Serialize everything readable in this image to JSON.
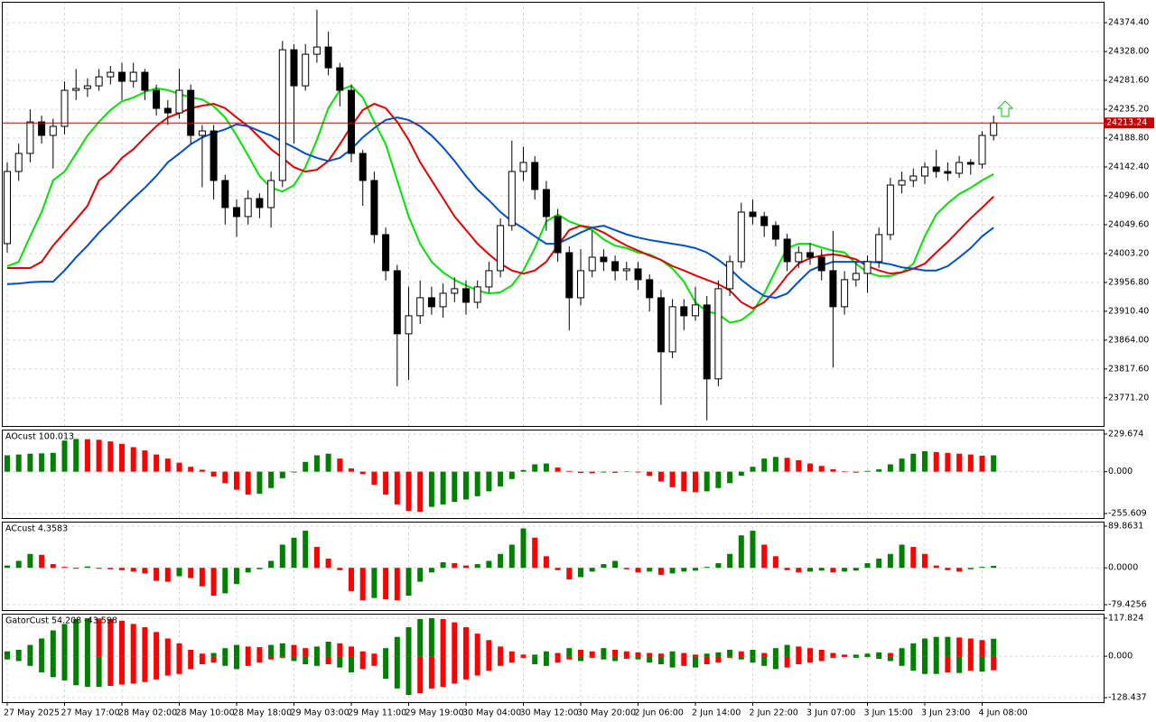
{
  "chart_data": [
    {
      "type": "candlestick",
      "categories": [
        "27 May 2025",
        null,
        null,
        null,
        null,
        "27 May 17:00",
        null,
        null,
        null,
        null,
        "28 May 02:00",
        null,
        null,
        null,
        null,
        "28 May 10:00",
        null,
        null,
        null,
        null,
        "28 May 18:00",
        null,
        null,
        null,
        null,
        "29 May 03:00",
        null,
        null,
        null,
        null,
        "29 May 11:00",
        null,
        null,
        null,
        null,
        "29 May 19:00",
        null,
        null,
        null,
        null,
        "30 May 04:00",
        null,
        null,
        null,
        null,
        "30 May 12:00",
        null,
        null,
        null,
        null,
        "30 May 20:00",
        null,
        null,
        null,
        null,
        "2 Jun 06:00",
        null,
        null,
        null,
        null,
        "2 Jun 14:00",
        null,
        null,
        null,
        null,
        "2 Jun 22:00",
        null,
        null,
        null,
        null,
        "3 Jun 07:00",
        null,
        null,
        null,
        null,
        "3 Jun 15:00",
        null,
        null,
        null,
        null,
        "3 Jun 23:00",
        null,
        null,
        null,
        null,
        "4 Jun 08:00",
        null
      ],
      "open": [
        24019.2,
        24135.2,
        24164.2,
        24214.9,
        24193.2,
        24207.7,
        24265.7,
        24268.6,
        24272.9,
        24287.4,
        24294.7,
        24280.2,
        24294.7,
        24265.7,
        24236.7,
        24229.4,
        24265.7,
        24193.2,
        24200.4,
        24120.7,
        24077.2,
        24062.7,
        24091.7,
        24077.2,
        24120.7,
        24330.9,
        24272.9,
        24323.7,
        24335.3,
        24301.9,
        24265.7,
        24164.2,
        24120.7,
        24033.7,
        23975.7,
        23874.2,
        23903.2,
        23932.2,
        23917.7,
        23939.4,
        23946.7,
        23924.9,
        23949.6,
        23975.7,
        24048.2,
        24135.2,
        24149.7,
        24106.2,
        24062.7,
        24004.7,
        23932.2,
        23975.7,
        23997.4,
        23990.2,
        23975.7,
        23978.6,
        23961.2,
        23932.2,
        23845.2,
        23917.7,
        23903.2,
        23920.6,
        23801.7,
        23946.7,
        23990.2,
        24069.9,
        24062.7,
        24048.2,
        24026.4,
        23990.2,
        24004.7,
        23997.4,
        23975.7,
        23917.7,
        23961.2,
        23971.3,
        23990.2,
        24033.7,
        24113.4,
        24120.7,
        24127.9,
        24142.4,
        24135.2,
        24132.3,
        24149.7,
        24146.9,
        24193.2
      ],
      "high": [
        24150,
        24180,
        24235,
        24225,
        24220,
        24280,
        24300,
        24285,
        24300,
        24305,
        24310,
        24310,
        24300,
        24275,
        24250,
        24300,
        24275,
        24210,
        24210,
        24130,
        24090,
        24105,
        24100,
        24135,
        24345,
        24340,
        24340,
        24395,
        24360,
        24310,
        24275,
        24170,
        24135,
        24045,
        23985,
        23950,
        23960,
        23950,
        23955,
        23965,
        23960,
        23960,
        23990,
        24060,
        24185,
        24175,
        24160,
        24120,
        24075,
        24015,
        24010,
        24040,
        24010,
        24000,
        23990,
        23990,
        23970,
        23945,
        23930,
        23930,
        23950,
        23935,
        23960,
        24000,
        24085,
        24090,
        24070,
        24055,
        24035,
        24015,
        24020,
        24010,
        24040,
        23975,
        23990,
        24000,
        24045,
        24125,
        24135,
        24140,
        24150,
        24170,
        24150,
        24160,
        24155,
        24200,
        24225
      ],
      "low": [
        24005,
        24120,
        24150,
        24180,
        24140,
        24195,
        24250,
        24255,
        24265,
        24275,
        24250,
        24270,
        24250,
        24225,
        24210,
        24220,
        24180,
        24110,
        24090,
        24050,
        24030,
        24050,
        24060,
        24045,
        24110,
        24180,
        24265,
        24310,
        24290,
        24240,
        24150,
        24080,
        24020,
        23960,
        23790,
        23800,
        23890,
        23905,
        23900,
        23925,
        23905,
        23915,
        23940,
        23965,
        24040,
        24120,
        24090,
        24040,
        23990,
        23880,
        23920,
        23965,
        23975,
        23960,
        23960,
        23945,
        23910,
        23760,
        23835,
        23880,
        23895,
        23735,
        23790,
        23935,
        23980,
        24050,
        24030,
        24015,
        23975,
        23980,
        23985,
        23960,
        23820,
        23905,
        23950,
        23940,
        23980,
        24025,
        24100,
        24110,
        24115,
        24125,
        24120,
        24125,
        24130,
        24140,
        24185
      ],
      "close": [
        24135.2,
        24164.2,
        24214.9,
        24193.2,
        24207.7,
        24265.7,
        24268.6,
        24272.9,
        24287.4,
        24294.7,
        24280.2,
        24294.7,
        24265.7,
        24236.7,
        24229.4,
        24265.7,
        24193.2,
        24200.4,
        24120.7,
        24077.2,
        24062.7,
        24091.7,
        24077.2,
        24120.7,
        24330.9,
        24272.9,
        24323.7,
        24335.3,
        24301.9,
        24265.7,
        24164.2,
        24120.7,
        24033.7,
        23975.7,
        23874.2,
        23903.2,
        23932.2,
        23917.7,
        23939.4,
        23946.7,
        23924.9,
        23949.6,
        23975.7,
        24048.2,
        24135.2,
        24149.7,
        24106.2,
        24062.7,
        24004.7,
        23932.2,
        23975.7,
        23997.4,
        23990.2,
        23975.7,
        23978.6,
        23961.2,
        23932.2,
        23845.2,
        23917.7,
        23903.2,
        23920.6,
        23801.7,
        23946.7,
        23990.2,
        24069.9,
        24062.7,
        24048.2,
        24026.4,
        23990.2,
        24004.7,
        23997.4,
        23975.7,
        23917.7,
        23961.2,
        23971.3,
        23990.2,
        24033.7,
        24113.4,
        24120.7,
        24127.9,
        24142.4,
        24135.2,
        24132.3,
        24149.7,
        24146.9,
        24193.2,
        24213.24
      ],
      "up_color": "#ffffff",
      "down_color": "#000000",
      "lines": [
        {
          "color": "#00e600",
          "values": [
            23983,
            23990,
            24031,
            24070,
            24121,
            24135,
            24164,
            24193,
            24215,
            24234,
            24248,
            24254,
            24263,
            24269,
            24266,
            24260,
            24254,
            24251,
            24240,
            24222,
            24193,
            24161,
            24128,
            24109,
            24103,
            24113,
            24142,
            24186,
            24237,
            24266,
            24273,
            24254,
            24215,
            24179,
            24121,
            24063,
            24019,
            23990,
            23973,
            23961,
            23952,
            23944,
            23939,
            23941,
            23952,
            23976,
            24012,
            24055,
            24066,
            24055,
            24048,
            24041,
            24026,
            24016,
            24012,
            24005,
            24002,
            23993,
            23979,
            23958,
            23925,
            23910,
            23906,
            23892,
            23896,
            23910,
            23939,
            23976,
            24012,
            24019,
            24019,
            24013,
            24008,
            24005,
            23987,
            23973,
            23967,
            23967,
            23973,
            23987,
            24031,
            24066,
            24084,
            24099,
            24109,
            24121,
            24131
          ]
        },
        {
          "color": "#e60000",
          "values": [
            23980,
            23980,
            23980,
            23990,
            24016,
            24037,
            24058,
            24080,
            24121,
            24135,
            24157,
            24171,
            24190,
            24208,
            24222,
            24229,
            24237,
            24241,
            24244,
            24237,
            24222,
            24208,
            24190,
            24171,
            24157,
            24142,
            24135,
            24138,
            24152,
            24179,
            24208,
            24234,
            24244,
            24237,
            24215,
            24186,
            24150,
            24121,
            24092,
            24063,
            24041,
            24019,
            24002,
            23987,
            23976,
            23971,
            23976,
            23990,
            24016,
            24041,
            24048,
            24045,
            24037,
            24026,
            24016,
            24008,
            24000,
            23993,
            23983,
            23976,
            23968,
            23961,
            23954,
            23944,
            23925,
            23915,
            23925,
            23944,
            23968,
            23987,
            23996,
            24000,
            24002,
            23999,
            23994,
            23983,
            23976,
            23971,
            23973,
            23979,
            23987,
            24005,
            24022,
            24041,
            24060,
            24077,
            24095
          ]
        },
        {
          "color": "#0050c8",
          "values": [
            23954,
            23955,
            23957,
            23958,
            23958,
            23976,
            23997,
            24016,
            24037,
            24055,
            24074,
            24092,
            24109,
            24128,
            24150,
            24164,
            24179,
            24190,
            24197,
            24203,
            24211,
            24208,
            24200,
            24193,
            24183,
            24174,
            24164,
            24157,
            24152,
            24157,
            24171,
            24190,
            24205,
            24218,
            24222,
            24218,
            24208,
            24193,
            24174,
            24152,
            24128,
            24106,
            24089,
            24070,
            24055,
            24044,
            24031,
            24019,
            24019,
            24028,
            24037,
            24045,
            24048,
            24041,
            24034,
            24029,
            24025,
            24022,
            24019,
            24016,
            24012,
            24005,
            23993,
            23979,
            23961,
            23947,
            23935,
            23932,
            23939,
            23958,
            23976,
            23984,
            23990,
            23990,
            23990,
            23990,
            23989,
            23986,
            23981,
            23979,
            23976,
            23976,
            23983,
            23997,
            24012,
            24031,
            24045
          ]
        }
      ],
      "current_price": 24213.24,
      "current_price_color": "#c80000",
      "ylim": [
        23726,
        24408
      ],
      "yticks": [
        {
          "value": 24374.4,
          "label": "24374.40"
        },
        {
          "value": 24328,
          "label": "24328.00"
        },
        {
          "value": 24281.6,
          "label": "24281.60"
        },
        {
          "value": 24235.2,
          "label": "24235.20"
        },
        {
          "value": 24188.8,
          "label": "24188.80"
        },
        {
          "value": 24142.4,
          "label": "24142.40"
        },
        {
          "value": 24096,
          "label": "24096.00"
        },
        {
          "value": 24049.6,
          "label": "24049.60"
        },
        {
          "value": 24003.2,
          "label": "24003.20"
        },
        {
          "value": 23956.8,
          "label": "23956.80"
        },
        {
          "value": 23910.4,
          "label": "23910.40"
        },
        {
          "value": 23864,
          "label": "23864.00"
        },
        {
          "value": 23817.6,
          "label": "23817.60"
        },
        {
          "value": 23771.2,
          "label": "23771.20"
        }
      ],
      "grid": true
    },
    {
      "type": "histogram",
      "title": "AOcust 100.013",
      "values": [
        100,
        105,
        110,
        112,
        115,
        190,
        200,
        198,
        195,
        185,
        170,
        150,
        130,
        105,
        80,
        55,
        30,
        12,
        -30,
        -70,
        -110,
        -140,
        -135,
        -100,
        -40,
        -5,
        60,
        100,
        110,
        80,
        20,
        -15,
        -80,
        -140,
        -200,
        -240,
        -245,
        -215,
        -200,
        -185,
        -170,
        -150,
        -120,
        -90,
        -45,
        10,
        45,
        50,
        25,
        5,
        -8,
        -10,
        -5,
        -7,
        2,
        -5,
        -25,
        -60,
        -95,
        -120,
        -125,
        -120,
        -100,
        -70,
        -25,
        30,
        80,
        90,
        85,
        70,
        50,
        35,
        15,
        3,
        -6,
        5,
        15,
        45,
        80,
        110,
        125,
        120,
        115,
        110,
        105,
        98,
        100.013
      ],
      "up_color": "#008000",
      "down_color": "#ff0000",
      "ylim": [
        -283.2,
        257.2
      ],
      "yticks": [
        229.674,
        {
          "value": 0,
          "label": "0.000"
        },
        -255.609
      ],
      "grid": true
    },
    {
      "type": "histogram",
      "title": "ACcust 4.3583",
      "values": [
        5,
        15,
        30,
        28,
        8,
        2,
        -2,
        3,
        -2,
        -3,
        -5,
        -8,
        -12,
        -28,
        -30,
        -18,
        -22,
        -40,
        -60,
        -55,
        -35,
        -10,
        -3,
        15,
        50,
        65,
        80,
        45,
        20,
        -5,
        -50,
        -70,
        -65,
        -68,
        -70,
        -60,
        -30,
        -10,
        12,
        10,
        5,
        8,
        15,
        30,
        50,
        85,
        65,
        25,
        -5,
        -25,
        -20,
        -8,
        8,
        15,
        -3,
        -10,
        -8,
        -15,
        -12,
        -8,
        -6,
        2,
        10,
        30,
        70,
        80,
        50,
        25,
        -5,
        -10,
        -8,
        -6,
        -10,
        -8,
        -6,
        10,
        20,
        30,
        50,
        45,
        30,
        5,
        -5,
        -8,
        -3,
        2,
        4.3583
      ],
      "up_color": "#008000",
      "down_color": "#ff0000",
      "ylim": [
        -91.1,
        99.6
      ],
      "yticks": [
        89.8631,
        {
          "value": 0,
          "label": "0.0000"
        },
        -79.4256
      ],
      "grid": true
    },
    {
      "type": "gator",
      "title": "GatorCust 54.208 -43.598",
      "upper": [
        15,
        20,
        35,
        55,
        80,
        100,
        115,
        118,
        117,
        115,
        110,
        100,
        90,
        75,
        55,
        40,
        20,
        8,
        10,
        25,
        35,
        30,
        28,
        35,
        40,
        35,
        25,
        30,
        45,
        40,
        30,
        15,
        8,
        25,
        60,
        90,
        115,
        118,
        115,
        105,
        90,
        70,
        50,
        30,
        15,
        5,
        5,
        15,
        10,
        25,
        20,
        15,
        25,
        20,
        15,
        12,
        10,
        8,
        15,
        10,
        5,
        8,
        12,
        20,
        15,
        20,
        10,
        25,
        35,
        30,
        25,
        20,
        10,
        5,
        5,
        8,
        12,
        10,
        25,
        40,
        55,
        60,
        60,
        58,
        55,
        50,
        54.208
      ],
      "lower": [
        -10,
        -15,
        -30,
        -50,
        -65,
        -75,
        -90,
        -95,
        -95,
        -92,
        -88,
        -85,
        -80,
        -72,
        -60,
        -55,
        -40,
        -25,
        -20,
        -30,
        -40,
        -30,
        -20,
        -10,
        -5,
        -15,
        -25,
        -30,
        -25,
        -35,
        -50,
        -40,
        -30,
        -70,
        -100,
        -120,
        -115,
        -100,
        -95,
        -85,
        -72,
        -60,
        -45,
        -30,
        -20,
        -5,
        -25,
        -30,
        -20,
        -10,
        -15,
        -5,
        -10,
        -15,
        -8,
        -10,
        -20,
        -25,
        -35,
        -30,
        -35,
        -25,
        -20,
        -5,
        -10,
        -20,
        -30,
        -40,
        -35,
        -25,
        -20,
        -15,
        -5,
        -3,
        -5,
        -3,
        -8,
        -15,
        -30,
        -45,
        -55,
        -55,
        -50,
        -52,
        -45,
        -48,
        -43.598
      ],
      "up_color": "#008000",
      "down_color": "#ff0000",
      "ylim": [
        -142.4,
        131.8
      ],
      "yticks": [
        117.824,
        {
          "value": 0,
          "label": "0.000"
        },
        -128.437
      ],
      "grid": true
    }
  ]
}
